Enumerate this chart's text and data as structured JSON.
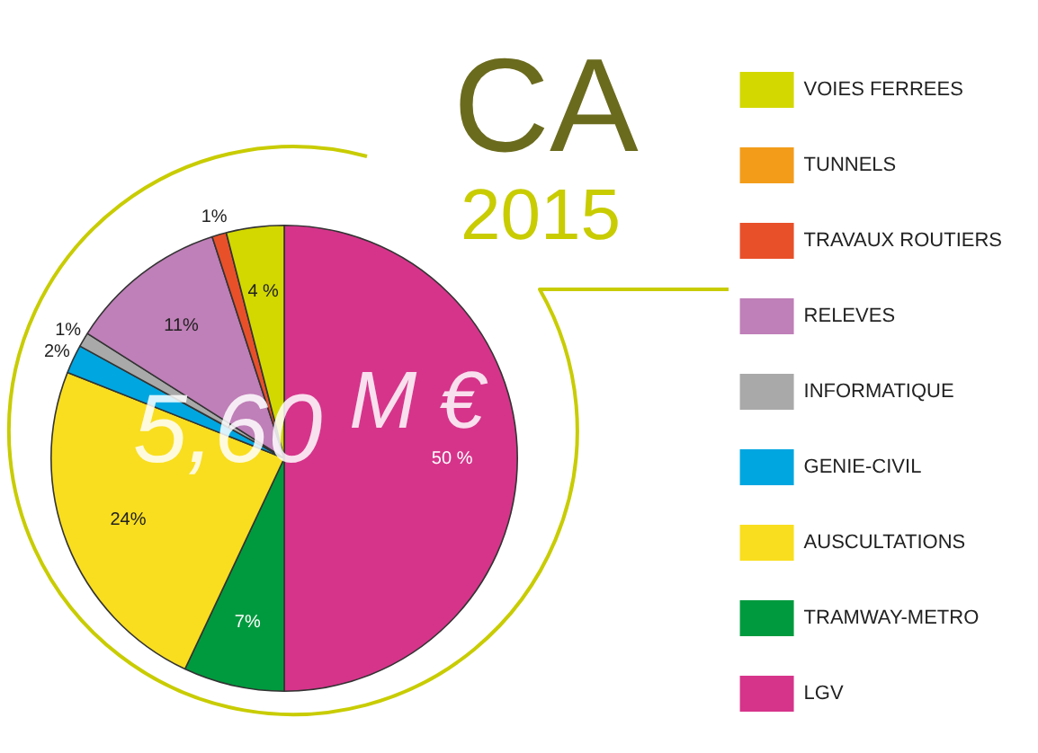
{
  "chart_data": {
    "type": "pie",
    "title": "CA",
    "subtitle": "2015",
    "categories": [
      "LGV",
      "TRAMWAY-METRO",
      "AUSCULTATIONS",
      "GENIE-CIVIL",
      "INFORMATIQUE",
      "RELEVES",
      "TRAVAUX ROUTIERS",
      "TUNNELS",
      "VOIES FERREES"
    ],
    "values": [
      50,
      7,
      24,
      2,
      1,
      11,
      1,
      0,
      4
    ],
    "colors": [
      "#d6348b",
      "#009a3e",
      "#f9de1f",
      "#00a6e0",
      "#a9a9a9",
      "#bf7fb8",
      "#e8502a",
      "#f39c1a",
      "#d3d800"
    ],
    "value_labels": [
      "50 %",
      "7%",
      "24%",
      "2%",
      "1%",
      "11%",
      "1%",
      null,
      "4 %"
    ],
    "annotations": [
      "5,60 $^{M €}$"
    ],
    "legend": "right"
  }
}
